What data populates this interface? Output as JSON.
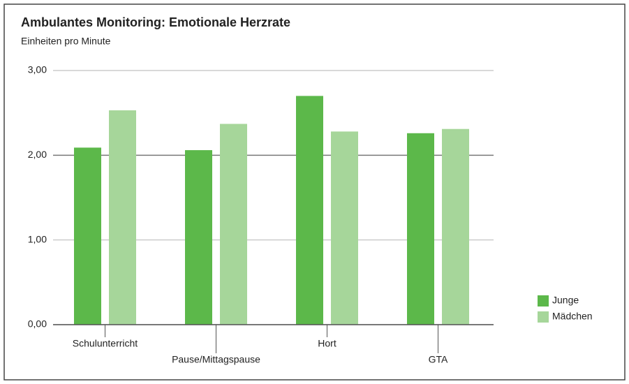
{
  "chart_data": {
    "type": "bar",
    "title": "Ambulantes Monitoring: Emotionale Herzrate",
    "subtitle": "Einheiten pro Minute",
    "categories": [
      "Schulunterricht",
      "Pause/Mittagspause",
      "Hort",
      "GTA"
    ],
    "series": [
      {
        "name": "Junge",
        "color": "#5cb84a",
        "values": [
          2.09,
          2.06,
          2.7,
          2.26
        ]
      },
      {
        "name": "Mädchen",
        "color": "#a6d69a",
        "values": [
          2.53,
          2.37,
          2.28,
          2.31
        ]
      }
    ],
    "ylim": [
      0,
      3
    ],
    "yticks": [
      {
        "value": 0,
        "label": "0,00"
      },
      {
        "value": 1,
        "label": "1,00"
      },
      {
        "value": 2,
        "label": "2,00"
      },
      {
        "value": 3,
        "label": "3,00"
      }
    ],
    "grid": true,
    "legend": "right"
  }
}
